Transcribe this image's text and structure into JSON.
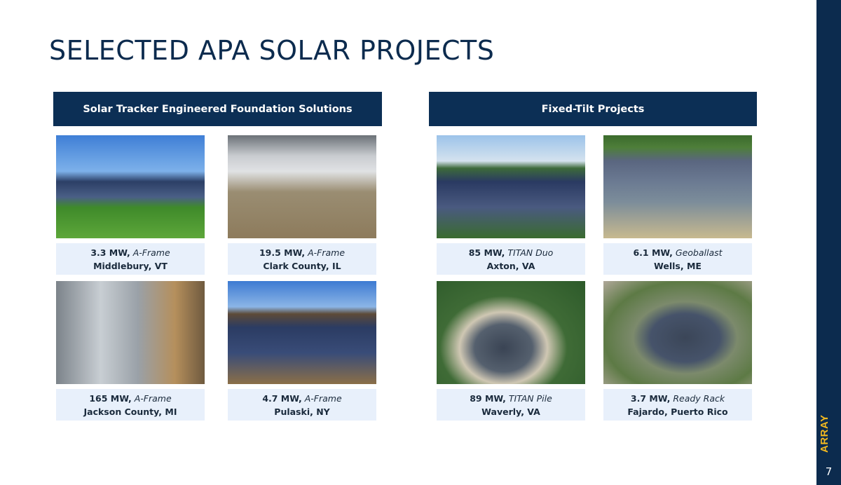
{
  "title": "SELECTED APA SOLAR PROJECTS",
  "sections": [
    {
      "header": "Solar Tracker Engineered Foundation Solutions"
    },
    {
      "header": "Fixed-Tilt Projects"
    }
  ],
  "projects": [
    {
      "capacity": "3.3 MW,",
      "system": "A-Frame",
      "location": "Middlebury, VT"
    },
    {
      "capacity": "19.5 MW,",
      "system": "A-Frame",
      "location": "Clark County, IL"
    },
    {
      "capacity": "85 MW,",
      "system": "TITAN Duo",
      "location": "Axton, VA"
    },
    {
      "capacity": "6.1 MW,",
      "system": "Geoballast",
      "location": "Wells, ME"
    },
    {
      "capacity": "165 MW,",
      "system": "A-Frame",
      "location": "Jackson County, MI"
    },
    {
      "capacity": "4.7 MW,",
      "system": "A-Frame",
      "location": "Pulaski, NY"
    },
    {
      "capacity": "89 MW,",
      "system": "TITAN Pile",
      "location": "Waverly, VA"
    },
    {
      "capacity": "3.7 MW,",
      "system": "Ready Rack",
      "location": "Fajardo, Puerto Rico"
    }
  ],
  "logo": "ARRAY",
  "page_number": "7",
  "colors": {
    "navy": "#0c2f55",
    "caption_bg": "#e8f0fb",
    "logo": "#f2b820"
  }
}
